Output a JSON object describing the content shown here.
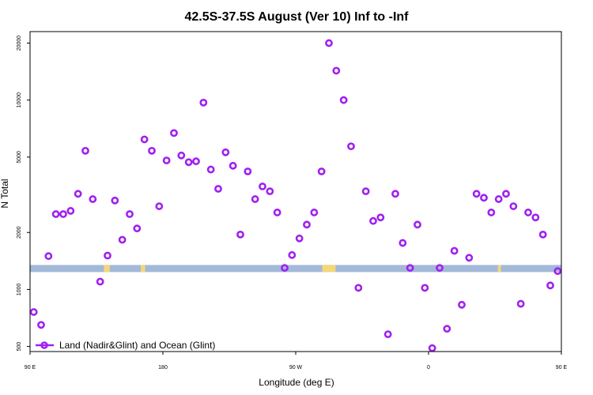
{
  "chart_data": {
    "type": "scatter",
    "title": "42.5S-37.5S August (Ver 10)   Inf to -Inf",
    "xlabel": "Longitude (deg E)",
    "ylabel": "N Total",
    "y_scale": "log",
    "xlim": [
      90,
      450
    ],
    "ylim": [
      470,
      23000
    ],
    "x_ticks": [
      {
        "value": 90,
        "label": "90 E"
      },
      {
        "value": 180,
        "label": "180"
      },
      {
        "value": 270,
        "label": "90 W"
      },
      {
        "value": 360,
        "label": "0"
      },
      {
        "value": 450,
        "label": "90 E"
      },
      {
        "value": 540,
        "label": "180"
      }
    ],
    "y_ticks": [
      {
        "value": 500,
        "label": "500"
      },
      {
        "value": 1000,
        "label": "1000"
      },
      {
        "value": 2000,
        "label": "2000"
      },
      {
        "value": 5000,
        "label": "5000"
      },
      {
        "value": 10000,
        "label": "10000"
      },
      {
        "value": 20000,
        "label": "20000"
      }
    ],
    "series": [
      {
        "name": "Land (Nadir&Glint) and Ocean (Glint)",
        "color": "#a020f0",
        "marker": "open-circle",
        "points": [
          [
            92.5,
            760
          ],
          [
            97.5,
            650
          ],
          [
            102.5,
            1500
          ],
          [
            107.5,
            2500
          ],
          [
            112.5,
            2500
          ],
          [
            117.5,
            2600
          ],
          [
            122.5,
            3200
          ],
          [
            127.5,
            5400
          ],
          [
            132.5,
            3000
          ],
          [
            137.5,
            1100
          ],
          [
            142.5,
            1510
          ],
          [
            147.5,
            2950
          ],
          [
            152.5,
            1830
          ],
          [
            157.5,
            2500
          ],
          [
            162.5,
            2100
          ],
          [
            167.5,
            6200
          ],
          [
            172.5,
            5400
          ],
          [
            177.5,
            2750
          ],
          [
            182.5,
            4800
          ],
          [
            187.5,
            6700
          ],
          [
            192.5,
            5100
          ],
          [
            197.5,
            4700
          ],
          [
            202.5,
            4750
          ],
          [
            207.5,
            9700
          ],
          [
            212.5,
            4300
          ],
          [
            217.5,
            3400
          ],
          [
            222.5,
            5300
          ],
          [
            227.5,
            4500
          ],
          [
            232.5,
            1950
          ],
          [
            237.5,
            4200
          ],
          [
            242.5,
            3000
          ],
          [
            247.5,
            3500
          ],
          [
            252.5,
            3300
          ],
          [
            257.5,
            2550
          ],
          [
            262.5,
            1300
          ],
          [
            267.5,
            1520
          ],
          [
            272.5,
            1860
          ],
          [
            277.5,
            2200
          ],
          [
            282.5,
            2550
          ],
          [
            287.5,
            4200
          ],
          [
            292.5,
            20000
          ],
          [
            297.5,
            14300
          ],
          [
            302.5,
            10000
          ],
          [
            307.5,
            5700
          ],
          [
            312.5,
            1020
          ],
          [
            317.5,
            3300
          ],
          [
            322.5,
            2300
          ],
          [
            327.5,
            2400
          ],
          [
            332.5,
            580
          ],
          [
            337.5,
            3200
          ],
          [
            342.5,
            1760
          ],
          [
            347.5,
            1300
          ],
          [
            352.5,
            2200
          ],
          [
            357.5,
            1020
          ],
          [
            362.5,
            490
          ],
          [
            367.5,
            1300
          ],
          [
            372.5,
            620
          ],
          [
            377.5,
            1600
          ],
          [
            382.5,
            830
          ],
          [
            387.5,
            1470
          ],
          [
            392.5,
            3200
          ],
          [
            397.5,
            3050
          ],
          [
            402.5,
            2550
          ],
          [
            407.5,
            3000
          ],
          [
            412.5,
            3200
          ],
          [
            417.5,
            2750
          ],
          [
            422.5,
            840
          ],
          [
            427.5,
            2550
          ],
          [
            432.5,
            2400
          ],
          [
            437.5,
            1950
          ],
          [
            442.5,
            1050
          ],
          [
            447.5,
            1250
          ]
        ]
      }
    ],
    "surface_strip": {
      "value": 1290,
      "ocean_color": "#a3b9d9",
      "land_color": "#f5d77a"
    },
    "legend": {
      "placement": "bottom-left"
    }
  }
}
